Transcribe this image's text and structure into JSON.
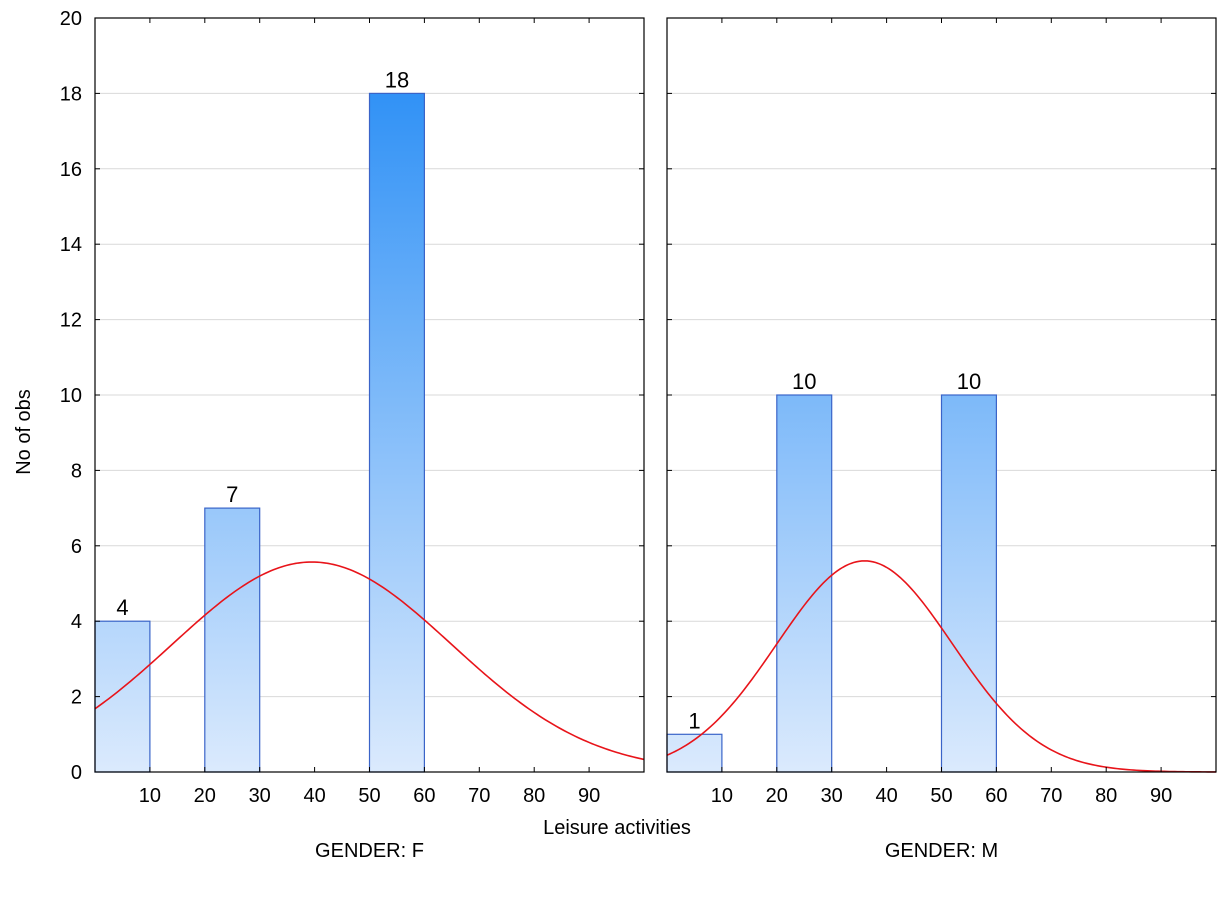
{
  "chart_data": {
    "type": "bar",
    "ylabel": "No of obs",
    "xlabel": "Leisure activities",
    "ylim": [
      0,
      20
    ],
    "yticks": [
      "0",
      "2",
      "4",
      "6",
      "8",
      "10",
      "12",
      "14",
      "16",
      "18",
      "20"
    ],
    "xlim": [
      0,
      100
    ],
    "xticks": [
      "10",
      "20",
      "30",
      "40",
      "50",
      "60",
      "70",
      "80",
      "90"
    ],
    "grid": true,
    "bar_color_light": "#dbeafd",
    "bar_color_dark": "#1e88f5",
    "bar_stroke": "#3a64c8",
    "curve_color": "#e8141a",
    "panels": [
      {
        "label": "GENDER: F",
        "bars": [
          {
            "x0": 0,
            "x1": 10,
            "value": 4,
            "label": "4"
          },
          {
            "x0": 20,
            "x1": 30,
            "value": 7,
            "label": "7"
          },
          {
            "x0": 50,
            "x1": 60,
            "value": 18,
            "label": "18"
          }
        ],
        "normal_fit": {
          "mean": 39.5,
          "sd": 25.5,
          "peak": 5.57
        }
      },
      {
        "label": "GENDER: M",
        "bars": [
          {
            "x0": 0,
            "x1": 10,
            "value": 1,
            "label": "1"
          },
          {
            "x0": 20,
            "x1": 30,
            "value": 10,
            "label": "10"
          },
          {
            "x0": 50,
            "x1": 60,
            "value": 10,
            "label": "10"
          }
        ],
        "normal_fit": {
          "mean": 36,
          "sd": 16,
          "peak": 5.6
        }
      }
    ]
  }
}
